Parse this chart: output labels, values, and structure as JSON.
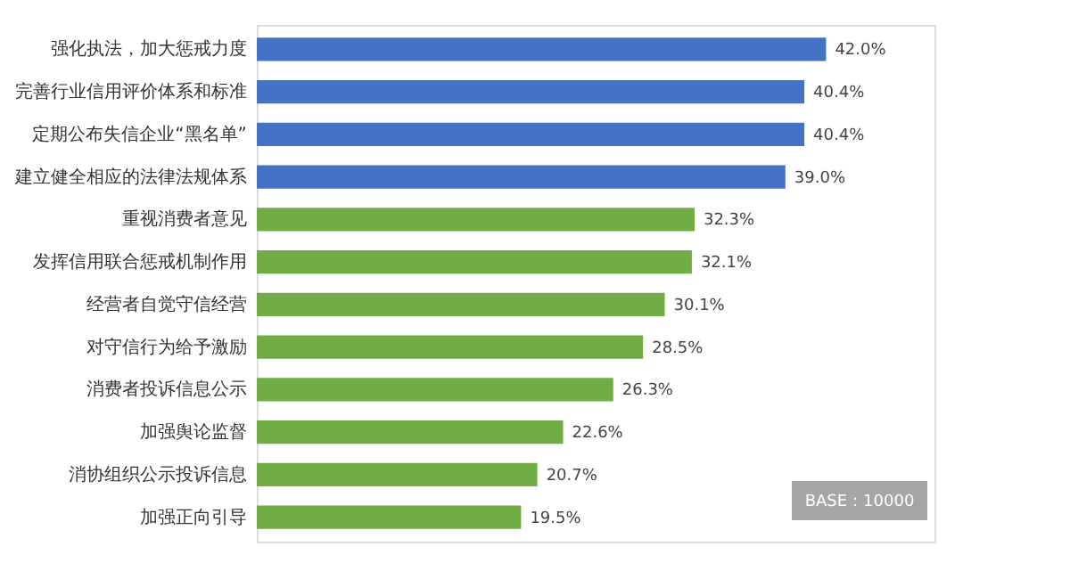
{
  "chart_data": {
    "type": "bar",
    "orientation": "horizontal",
    "categories": [
      "强化执法，加大惩戒力度",
      "完善行业信用评价体系和标准",
      "定期公布失信企业“黑名单”",
      "建立健全相应的法律法规体系",
      "重视消费者意见",
      "发挥信用联合惩戒机制作用",
      "经营者自觉守信经营",
      "对守信行为给予激励",
      "消费者投诉信息公示",
      "加强舆论监督",
      "消协组织公示投诉信息",
      "加强正向引导"
    ],
    "values": [
      42.0,
      40.4,
      40.4,
      39.0,
      32.3,
      32.1,
      30.1,
      28.5,
      26.3,
      22.6,
      20.7,
      19.5
    ],
    "value_labels": [
      "42.0%",
      "40.4%",
      "40.4%",
      "39.0%",
      "32.3%",
      "32.1%",
      "30.1%",
      "28.5%",
      "26.3%",
      "22.6%",
      "20.7%",
      "19.5%"
    ],
    "colors": [
      "#4472c4",
      "#4472c4",
      "#4472c4",
      "#4472c4",
      "#70ad47",
      "#70ad47",
      "#70ad47",
      "#70ad47",
      "#70ad47",
      "#70ad47",
      "#70ad47",
      "#70ad47"
    ],
    "xlim": [
      0,
      50
    ],
    "tick_labels": "y",
    "grid": false,
    "annotations": [
      "BASE：10000"
    ]
  }
}
